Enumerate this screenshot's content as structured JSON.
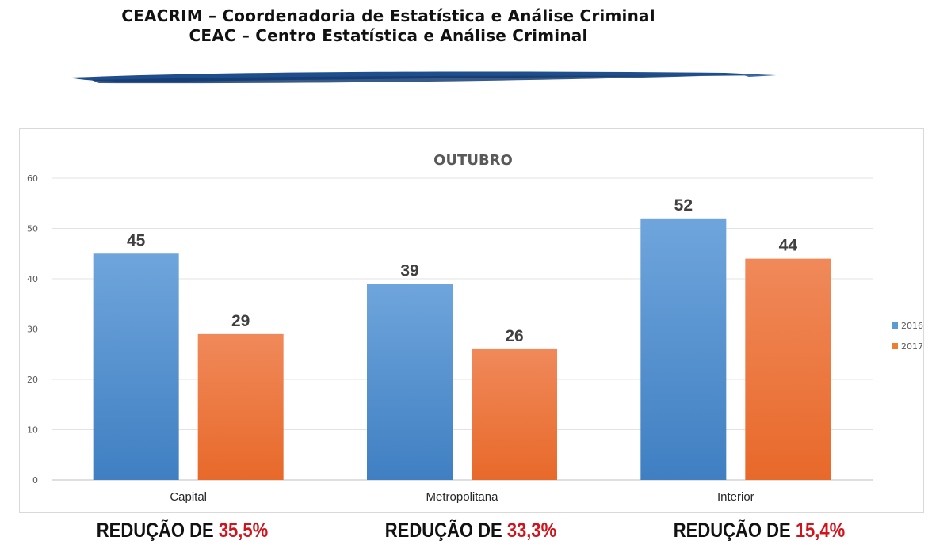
{
  "header": {
    "line1": "CEACRIM – Coordenadoria de Estatística e Análise Criminal",
    "line2": "CEAC – Centro Estatística e Análise Criminal"
  },
  "chart_data": {
    "type": "bar",
    "title": "OUTUBRO",
    "categories": [
      "Capital",
      "Metropolitana",
      "Interior"
    ],
    "series": [
      {
        "name": "2016",
        "values": [
          45,
          39,
          52
        ],
        "color": "#5b9bd5"
      },
      {
        "name": "2017",
        "values": [
          29,
          26,
          44
        ],
        "color": "#ed7d31"
      }
    ],
    "y_ticks": [
      0,
      10,
      20,
      30,
      40,
      50,
      60
    ],
    "ylim": [
      0,
      60
    ],
    "grid": true,
    "legend": "right"
  },
  "reductions": [
    {
      "label": "REDUÇÃO DE",
      "value": "35,5%"
    },
    {
      "label": "REDUÇÃO DE",
      "value": "33,3%"
    },
    {
      "label": "REDUÇÃO DE",
      "value": "15,4%"
    }
  ]
}
